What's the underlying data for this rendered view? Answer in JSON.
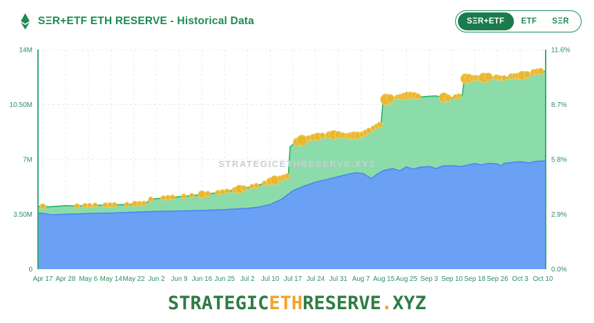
{
  "header": {
    "title": "SΞR+ETF ETH RESERVE - Historical Data",
    "eth_icon": "ethereum-diamond-icon",
    "toggle": {
      "options": [
        {
          "label": "SΞR+ETF",
          "active": true
        },
        {
          "label": "ETF",
          "active": false
        },
        {
          "label": "SΞR",
          "active": false
        }
      ]
    }
  },
  "watermark": "STRATEGICETHRESERVE.XYZ",
  "footer": {
    "part1": "STRATEGIC",
    "part2": "ETH",
    "part3": "RESERVE",
    "part4": ".",
    "part5": "XYZ"
  },
  "colors": {
    "title_green": "#1e8b52",
    "axis_green": "#3aa973",
    "label_green": "#2d8f60",
    "grid": "#e5e8ec",
    "area_green_fill": "#8bdca8",
    "area_green_line": "#2eb26e",
    "area_blue_fill": "#6ba1f5",
    "area_blue_line": "#4c88ef",
    "marker_yellow": "#e9b72f",
    "marker_stroke": "#f3cd68",
    "toggle_active_bg": "#1a7c4b",
    "footer_green": "#2e7d44",
    "footer_orange": "#f0a32a",
    "watermark_gray": "#c9ced6"
  },
  "chart_data": {
    "type": "area",
    "stacked": true,
    "title": "SΞR+ETF ETH RESERVE - Historical Data",
    "x_tick_labels": [
      "Apr 17",
      "Apr 28",
      "May 6",
      "May 14",
      "May 22",
      "Jun 2",
      "Jun 9",
      "Jun 16",
      "Jun 25",
      "Jul 2",
      "Jul 10",
      "Jul 17",
      "Jul 24",
      "Jul 31",
      "Aug 7",
      "Aug 15",
      "Aug 25",
      "Sep 3",
      "Sep 10",
      "Sep 18",
      "Sep 26",
      "Oct 3",
      "Oct 10"
    ],
    "left_axis": {
      "unit": "M ETH",
      "labels": [
        "0",
        "3.50M",
        "7M",
        "10.50M",
        "14M"
      ],
      "values": [
        0,
        3.5,
        7,
        10.5,
        14
      ],
      "max": 14
    },
    "right_axis": {
      "unit": "% of supply",
      "labels": [
        "0.0%",
        "2.9%",
        "5.8%",
        "8.7%",
        "11.6%"
      ],
      "values": [
        0,
        2.9,
        5.8,
        8.7,
        11.6
      ],
      "max": 11.6
    },
    "grid": "dashed",
    "legend": "none",
    "values_at_ticks_millions": {
      "total_green_top": [
        4.0,
        4.05,
        4.05,
        4.1,
        4.15,
        4.5,
        4.6,
        4.75,
        4.95,
        5.2,
        5.6,
        8.0,
        8.4,
        8.55,
        8.55,
        10.85,
        11.05,
        11.0,
        10.95,
        12.2,
        12.25,
        12.3,
        12.6
      ],
      "blue_bottom": [
        3.55,
        3.5,
        3.55,
        3.6,
        3.65,
        3.7,
        3.7,
        3.75,
        3.8,
        3.9,
        4.1,
        5.0,
        5.55,
        5.9,
        6.15,
        6.3,
        6.5,
        6.55,
        6.6,
        6.75,
        6.75,
        6.85,
        6.9
      ]
    },
    "series": [
      {
        "name": "total_green",
        "fill": "#8bdca8",
        "line": "#2eb26e",
        "points": [
          [
            0,
            4.0
          ],
          [
            0.3,
            3.98
          ],
          [
            1,
            4.05
          ],
          [
            1.5,
            4.03
          ],
          [
            2,
            4.06
          ],
          [
            3,
            4.1
          ],
          [
            3.8,
            4.12
          ],
          [
            4,
            4.16
          ],
          [
            4.55,
            4.2
          ],
          [
            4.72,
            4.45
          ],
          [
            5,
            4.5
          ],
          [
            5.5,
            4.56
          ],
          [
            6,
            4.62
          ],
          [
            6.5,
            4.68
          ],
          [
            7,
            4.76
          ],
          [
            7.5,
            4.84
          ],
          [
            8,
            4.95
          ],
          [
            8.5,
            5.06
          ],
          [
            9,
            5.2
          ],
          [
            9.5,
            5.36
          ],
          [
            10,
            5.6
          ],
          [
            10.4,
            5.75
          ],
          [
            10.6,
            5.85
          ],
          [
            10.8,
            5.95
          ],
          [
            10.88,
            7.8
          ],
          [
            11,
            7.95
          ],
          [
            11.3,
            8.18
          ],
          [
            11.7,
            8.35
          ],
          [
            12,
            8.42
          ],
          [
            12.4,
            8.55
          ],
          [
            13,
            8.57
          ],
          [
            13.4,
            8.5
          ],
          [
            13.8,
            8.53
          ],
          [
            14,
            8.56
          ],
          [
            14.3,
            8.78
          ],
          [
            14.6,
            9.05
          ],
          [
            14.88,
            9.25
          ],
          [
            14.96,
            10.6
          ],
          [
            15.1,
            10.82
          ],
          [
            15.5,
            10.95
          ],
          [
            16,
            11.05
          ],
          [
            16.3,
            11.1
          ],
          [
            16.6,
            10.98
          ],
          [
            17,
            11.03
          ],
          [
            17.3,
            11.05
          ],
          [
            17.6,
            10.95
          ],
          [
            17.9,
            10.9
          ],
          [
            18.2,
            11.0
          ],
          [
            18.45,
            11.1
          ],
          [
            18.55,
            12.15
          ],
          [
            18.8,
            12.18
          ],
          [
            19,
            12.2
          ],
          [
            19.3,
            12.18
          ],
          [
            19.6,
            12.25
          ],
          [
            20,
            12.22
          ],
          [
            20.3,
            12.18
          ],
          [
            20.6,
            12.3
          ],
          [
            21,
            12.32
          ],
          [
            21.3,
            12.4
          ],
          [
            21.6,
            12.55
          ],
          [
            21.85,
            12.62
          ],
          [
            22,
            12.62
          ]
        ]
      },
      {
        "name": "bottom_blue",
        "fill": "#6ba1f5",
        "line": "#4c88ef",
        "points": [
          [
            0,
            3.56
          ],
          [
            0.4,
            3.46
          ],
          [
            1,
            3.5
          ],
          [
            2,
            3.55
          ],
          [
            3,
            3.58
          ],
          [
            4,
            3.63
          ],
          [
            5,
            3.68
          ],
          [
            6,
            3.71
          ],
          [
            7,
            3.74
          ],
          [
            8,
            3.8
          ],
          [
            9,
            3.88
          ],
          [
            9.5,
            3.96
          ],
          [
            10,
            4.12
          ],
          [
            10.5,
            4.45
          ],
          [
            11,
            5.0
          ],
          [
            11.5,
            5.3
          ],
          [
            12,
            5.55
          ],
          [
            12.5,
            5.72
          ],
          [
            13,
            5.9
          ],
          [
            13.5,
            6.08
          ],
          [
            13.8,
            6.15
          ],
          [
            14.1,
            6.1
          ],
          [
            14.45,
            5.78
          ],
          [
            14.7,
            6.05
          ],
          [
            15,
            6.3
          ],
          [
            15.4,
            6.42
          ],
          [
            15.7,
            6.28
          ],
          [
            16,
            6.52
          ],
          [
            16.3,
            6.38
          ],
          [
            16.6,
            6.5
          ],
          [
            17,
            6.55
          ],
          [
            17.3,
            6.42
          ],
          [
            17.6,
            6.58
          ],
          [
            18,
            6.6
          ],
          [
            18.4,
            6.55
          ],
          [
            18.8,
            6.68
          ],
          [
            19,
            6.73
          ],
          [
            19.3,
            6.65
          ],
          [
            19.6,
            6.75
          ],
          [
            20,
            6.72
          ],
          [
            20.15,
            6.58
          ],
          [
            20.3,
            6.75
          ],
          [
            20.7,
            6.82
          ],
          [
            21,
            6.85
          ],
          [
            21.4,
            6.78
          ],
          [
            21.7,
            6.88
          ],
          [
            22,
            6.9
          ]
        ]
      }
    ],
    "markers": {
      "color": "#e9b72f",
      "on_series": "total_green",
      "points": [
        [
          0,
          4
        ],
        [
          1.5,
          3.5
        ],
        [
          1.85,
          3.5
        ],
        [
          2.05,
          3.5
        ],
        [
          2.3,
          3.5
        ],
        [
          2.75,
          3.5
        ],
        [
          2.95,
          3.5
        ],
        [
          3.15,
          3.5
        ],
        [
          3.7,
          3.5
        ],
        [
          4.05,
          4
        ],
        [
          4.25,
          3.5
        ],
        [
          4.45,
          3.5
        ],
        [
          4.75,
          3.5
        ],
        [
          5.3,
          3.5
        ],
        [
          5.5,
          3.5
        ],
        [
          5.7,
          3.5
        ],
        [
          6.2,
          3.5
        ],
        [
          6.55,
          3.5
        ],
        [
          7.0,
          5.5
        ],
        [
          7.25,
          4
        ],
        [
          7.7,
          3.5
        ],
        [
          7.9,
          3.5
        ],
        [
          8.1,
          3.5
        ],
        [
          8.45,
          4
        ],
        [
          8.65,
          6
        ],
        [
          8.85,
          4
        ],
        [
          9.2,
          3.5
        ],
        [
          9.4,
          3.5
        ],
        [
          9.75,
          3.5
        ],
        [
          10.0,
          5
        ],
        [
          10.2,
          6.5
        ],
        [
          10.45,
          4
        ],
        [
          10.6,
          4
        ],
        [
          10.75,
          4
        ],
        [
          11.2,
          6
        ],
        [
          11.4,
          7.5
        ],
        [
          11.7,
          4
        ],
        [
          11.9,
          5
        ],
        [
          12.1,
          5.5
        ],
        [
          12.3,
          4
        ],
        [
          12.6,
          5
        ],
        [
          12.8,
          6.5
        ],
        [
          13.0,
          5
        ],
        [
          13.2,
          4
        ],
        [
          13.4,
          4
        ],
        [
          13.55,
          5
        ],
        [
          13.7,
          5.5
        ],
        [
          13.85,
          5
        ],
        [
          14.05,
          4
        ],
        [
          14.2,
          4
        ],
        [
          14.35,
          4
        ],
        [
          14.55,
          3.5
        ],
        [
          14.7,
          3.5
        ],
        [
          14.82,
          4
        ],
        [
          15.1,
          8
        ],
        [
          15.28,
          6
        ],
        [
          15.6,
          3.5
        ],
        [
          15.75,
          4
        ],
        [
          15.9,
          5
        ],
        [
          16.05,
          5.5
        ],
        [
          16.2,
          5
        ],
        [
          16.35,
          4.5
        ],
        [
          16.5,
          4
        ],
        [
          17.65,
          7
        ],
        [
          17.82,
          5
        ],
        [
          18.15,
          3.5
        ],
        [
          18.3,
          3.5
        ],
        [
          18.6,
          7
        ],
        [
          18.75,
          6
        ],
        [
          18.9,
          4
        ],
        [
          19.05,
          4
        ],
        [
          19.2,
          4
        ],
        [
          19.4,
          7
        ],
        [
          19.6,
          6
        ],
        [
          19.95,
          4
        ],
        [
          20.1,
          3.5
        ],
        [
          20.3,
          4
        ],
        [
          20.6,
          4
        ],
        [
          20.75,
          4
        ],
        [
          20.9,
          4.5
        ],
        [
          21.1,
          6.5
        ],
        [
          21.3,
          5
        ],
        [
          21.6,
          4.5
        ],
        [
          21.75,
          4.5
        ],
        [
          21.9,
          4.5
        ]
      ]
    }
  }
}
